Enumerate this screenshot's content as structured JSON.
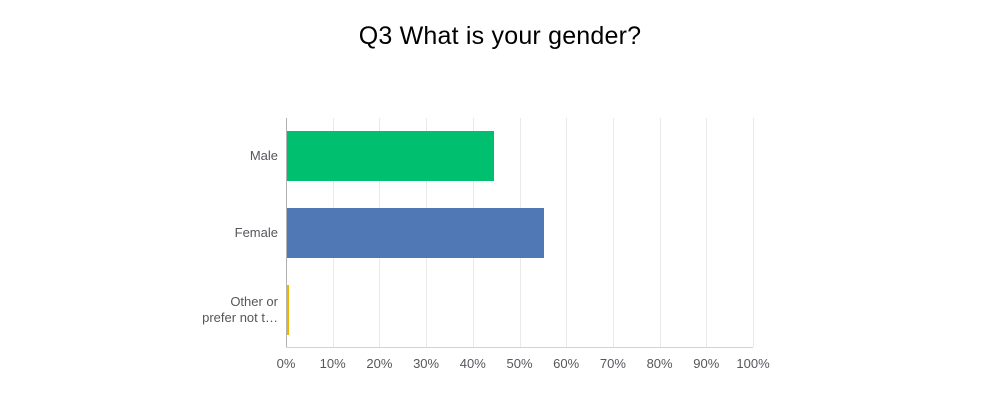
{
  "chart_data": {
    "type": "bar",
    "orientation": "horizontal",
    "title": "Q3 What is your gender?",
    "categories": [
      "Male",
      "Female",
      "Other or prefer not t…"
    ],
    "categories_display_lines": [
      [
        "Male"
      ],
      [
        "Female"
      ],
      [
        "Other or",
        "prefer not t…"
      ]
    ],
    "values": [
      44.4,
      55.1,
      0.5
    ],
    "value_unit": "%",
    "bar_colors": [
      "#00BF6F",
      "#5078B4",
      "#F0B400"
    ],
    "x_axis": {
      "min": 0,
      "max": 100,
      "tick_labels": [
        "0%",
        "10%",
        "20%",
        "30%",
        "40%",
        "50%",
        "60%",
        "70%",
        "80%",
        "90%",
        "100%"
      ]
    },
    "grid": true,
    "legend": false
  },
  "style": {
    "page_background": "#ffffff",
    "title_color": "#000000",
    "label_color": "#54575b",
    "grid_color": "#e9e9e9",
    "axis_line_color": "#b2b2b2",
    "baseline_color": "#d2d2d2"
  }
}
